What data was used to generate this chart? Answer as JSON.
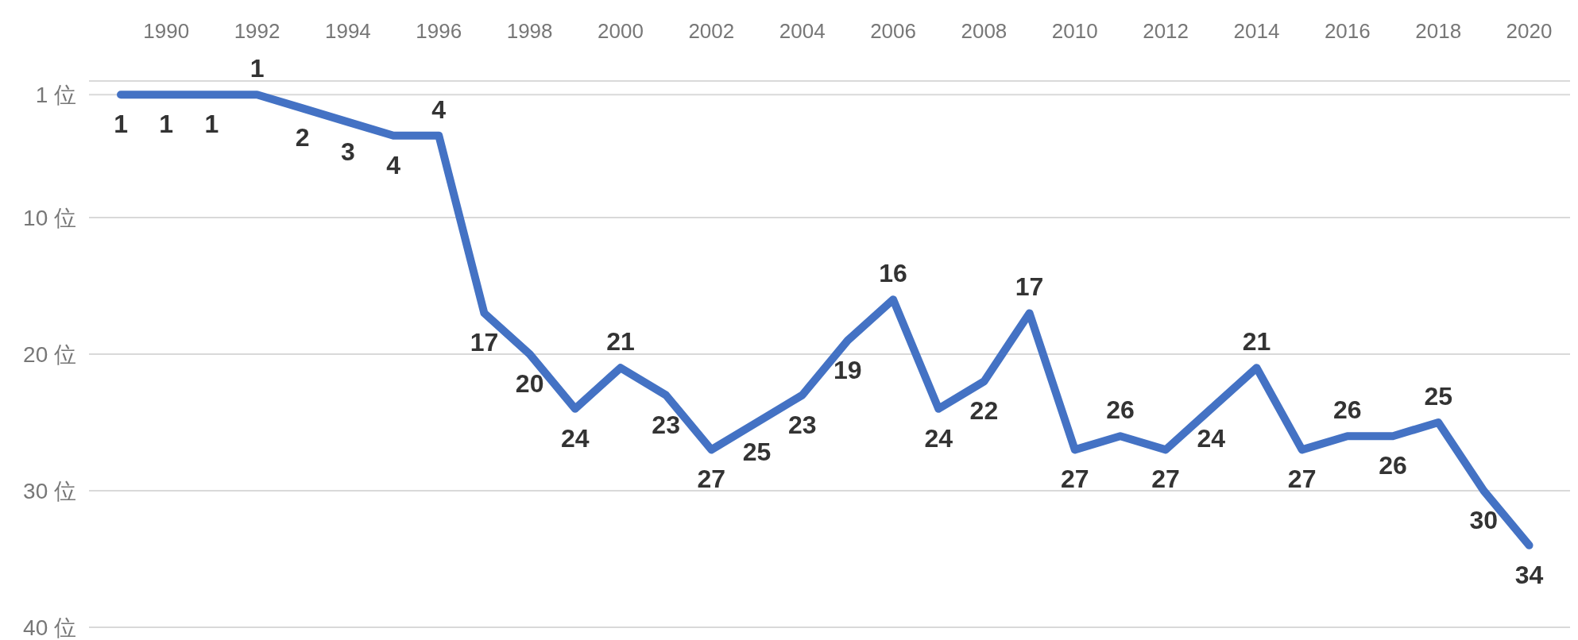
{
  "chart_data": {
    "type": "line",
    "x": [
      1989,
      1990,
      1991,
      1992,
      1993,
      1994,
      1995,
      1996,
      1997,
      1998,
      1999,
      2000,
      2001,
      2002,
      2003,
      2004,
      2005,
      2006,
      2007,
      2008,
      2009,
      2010,
      2011,
      2012,
      2013,
      2014,
      2015,
      2016,
      2017,
      2018,
      2019,
      2020
    ],
    "series": [
      {
        "color": "#4472c4",
        "values": [
          1,
          1,
          1,
          1,
          2,
          3,
          4,
          4,
          17,
          20,
          24,
          21,
          23,
          27,
          25,
          23,
          19,
          16,
          24,
          22,
          17,
          27,
          26,
          27,
          24,
          21,
          27,
          26,
          26,
          25,
          30,
          34
        ]
      }
    ],
    "xlim": [
      1988.3,
      2020.9
    ],
    "xticks": [
      1990,
      1992,
      1994,
      1996,
      1998,
      2000,
      2002,
      2004,
      2006,
      2008,
      2010,
      2012,
      2014,
      2016,
      2018,
      2020
    ],
    "ylim": [
      40,
      0
    ],
    "yticks": [
      {
        "value": 1,
        "label": "1 位"
      },
      {
        "value": 10,
        "label": "10 位"
      },
      {
        "value": 20,
        "label": "20 位"
      },
      {
        "value": 30,
        "label": "30 位"
      },
      {
        "value": 40,
        "label": "40 位"
      }
    ],
    "grid": "y",
    "data_labels": true,
    "marker": "none",
    "line_style": "solid"
  }
}
